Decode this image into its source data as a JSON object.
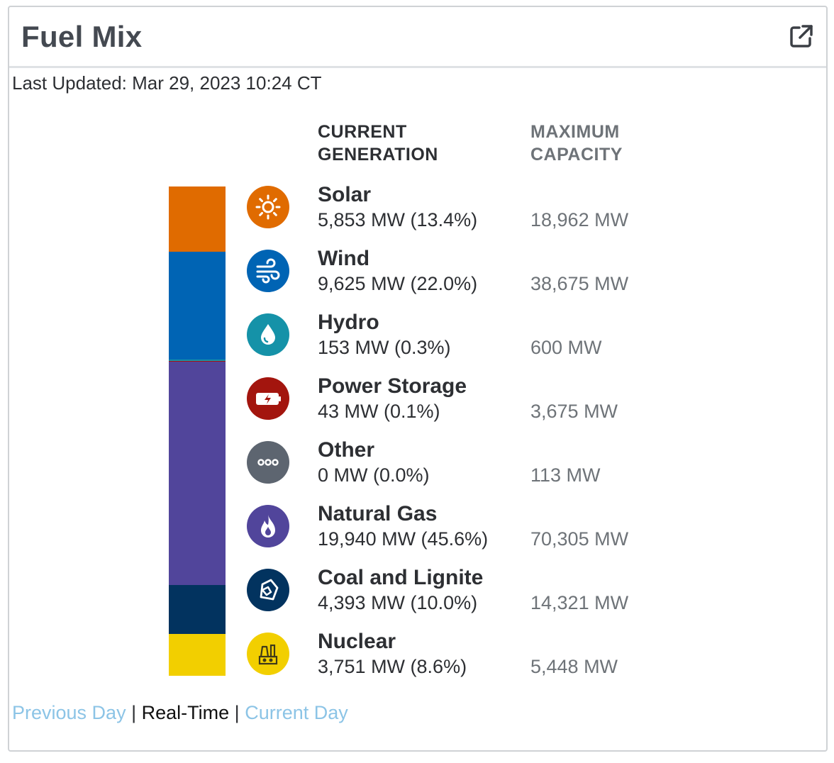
{
  "header": {
    "title": "Fuel Mix",
    "popout_icon": "external-link-icon"
  },
  "last_updated": "Last Updated: Mar 29, 2023 10:24 CT",
  "columns": {
    "current_line1": "CURRENT",
    "current_line2": "GENERATION",
    "max_line1": "MAXIMUM",
    "max_line2": "CAPACITY"
  },
  "fuels": [
    {
      "name": "Solar",
      "mw": 5853,
      "share_percent": 13.4,
      "value": "5,853 MW (13.4%)",
      "max": "18,962 MW",
      "color": "#e06b00",
      "icon": "sun-icon"
    },
    {
      "name": "Wind",
      "mw": 9625,
      "share_percent": 22.0,
      "value": "9,625 MW (22.0%)",
      "max": "38,675 MW",
      "color": "#0064b4",
      "icon": "wind-icon"
    },
    {
      "name": "Hydro",
      "mw": 153,
      "share_percent": 0.3,
      "value": "153 MW (0.3%)",
      "max": "600 MW",
      "color": "#1592a8",
      "icon": "water-drop-icon"
    },
    {
      "name": "Power Storage",
      "mw": 43,
      "share_percent": 0.1,
      "value": "43 MW (0.1%)",
      "max": "3,675 MW",
      "color": "#a3150e",
      "icon": "battery-icon"
    },
    {
      "name": "Other",
      "mw": 0,
      "share_percent": 0.0,
      "value": "0 MW (0.0%)",
      "max": "113 MW",
      "color": "#5d6570",
      "icon": "more-dots-icon"
    },
    {
      "name": "Natural Gas",
      "mw": 19940,
      "share_percent": 45.6,
      "value": "19,940 MW (45.6%)",
      "max": "70,305 MW",
      "color": "#51459b",
      "icon": "flame-icon"
    },
    {
      "name": "Coal and Lignite",
      "mw": 4393,
      "share_percent": 10.0,
      "value": "4,393 MW (10.0%)",
      "max": "14,321 MW",
      "color": "#02335f",
      "icon": "coal-icon"
    },
    {
      "name": "Nuclear",
      "mw": 3751,
      "share_percent": 8.6,
      "value": "3,751 MW (8.6%)",
      "max": "5,448 MW",
      "color": "#f2cf00",
      "icon": "nuclear-plant-icon"
    }
  ],
  "footer": {
    "previous_day": "Previous Day",
    "separator": "|",
    "real_time": "Real-Time",
    "current_day": "Current Day"
  }
}
